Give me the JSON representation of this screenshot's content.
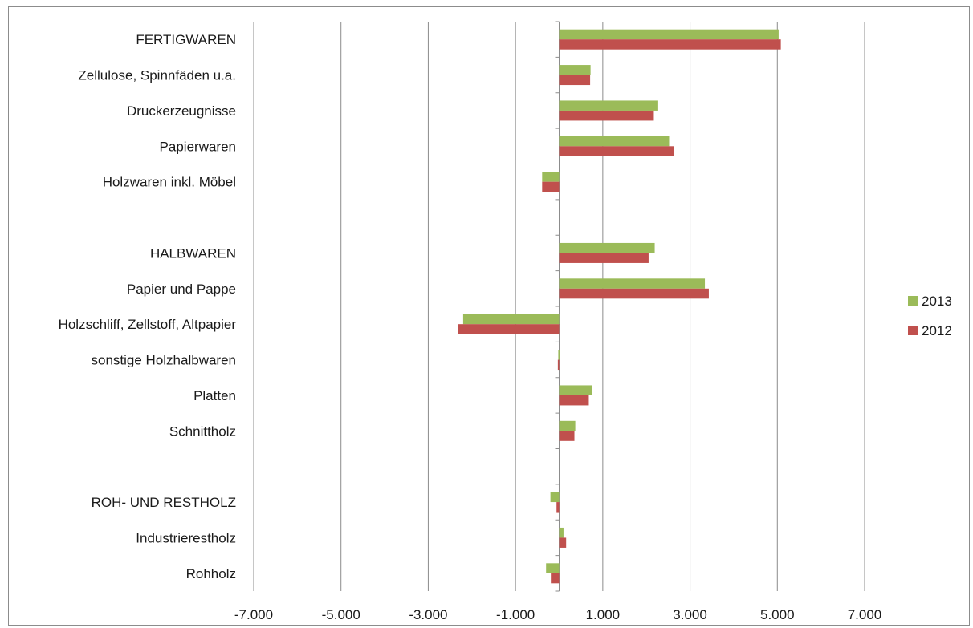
{
  "chart_data": {
    "type": "bar",
    "orientation": "horizontal",
    "title": "",
    "xlabel": "",
    "ylabel": "",
    "xlim": [
      -7000,
      7000
    ],
    "xticks": [
      "-7.000",
      "-5.000",
      "-3.000",
      "-1.000",
      "1.000",
      "3.000",
      "5.000",
      "7.000"
    ],
    "xtick_values": [
      -7000,
      -5000,
      -3000,
      -1000,
      1000,
      3000,
      5000,
      7000
    ],
    "grid": "vertical",
    "legend_position": "right",
    "categories": [
      "FERTIGWAREN",
      "Zellulose, Spinnfäden u.a.",
      "Druckerzeugnisse",
      "Papierwaren",
      "Holzwaren inkl. Möbel",
      "",
      "HALBWAREN",
      "Papier und Pappe",
      "Holzschliff, Zellstoff, Altpapier",
      "sonstige Holzhalbwaren",
      "Platten",
      "Schnittholz",
      "",
      "ROH- UND RESTHOLZ",
      "Industrierestholz",
      "Rohholz"
    ],
    "series": [
      {
        "name": "2013",
        "color": "#9bbb59",
        "values": [
          5030,
          720,
          2270,
          2520,
          -390,
          null,
          2190,
          3340,
          -2200,
          -20,
          760,
          370,
          null,
          -200,
          100,
          -300
        ]
      },
      {
        "name": "2012",
        "color": "#c0504d",
        "values": [
          5080,
          710,
          2170,
          2640,
          -390,
          null,
          2050,
          3430,
          -2310,
          -30,
          680,
          350,
          null,
          -60,
          160,
          -190
        ]
      }
    ]
  }
}
